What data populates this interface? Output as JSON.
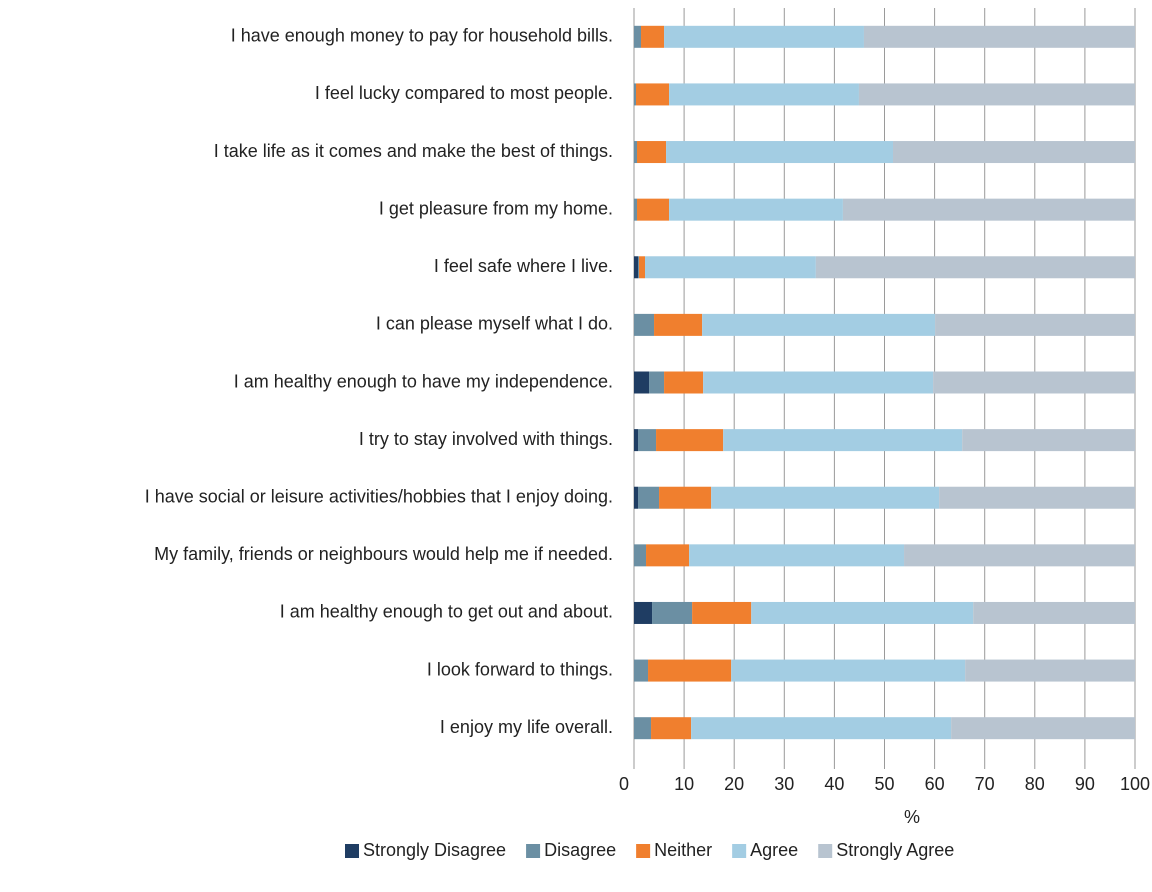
{
  "chart_data": {
    "type": "stacked-barh",
    "xlabel": "%",
    "categories": [
      "I have enough money to pay for household bills.",
      "I feel lucky compared to most people.",
      "I take life as it comes and make the best of things.",
      "I get pleasure from my home.",
      "I feel safe where I live.",
      "I can please myself what I do.",
      "I am healthy enough to have my independence.",
      "I try to stay involved with things.",
      "I have social or leisure activities/hobbies that I enjoy doing.",
      "My family, friends or neighbours would help me if needed.",
      "I am healthy enough to get out and about.",
      "I look forward to things.",
      "I enjoy my life overall."
    ],
    "series": [
      {
        "name": "Strongly Disagree",
        "color": "#1f3d63",
        "values": [
          0,
          0,
          0,
          0,
          0.8,
          0,
          3.0,
          0.8,
          0.8,
          0,
          3.6,
          0,
          0
        ]
      },
      {
        "name": "Disagree",
        "color": "#6b8fa3",
        "values": [
          1.4,
          0.4,
          0.6,
          0.6,
          0.2,
          4.0,
          3.0,
          3.6,
          4.2,
          2.4,
          8.0,
          2.8,
          3.4
        ]
      },
      {
        "name": "Neither",
        "color": "#f07f2e",
        "values": [
          4.6,
          6.6,
          5.8,
          6.4,
          1.2,
          9.6,
          7.8,
          13.4,
          10.4,
          8.6,
          11.8,
          16.6,
          8.0
        ]
      },
      {
        "name": "Agree",
        "color": "#a3cde3",
        "values": [
          39.9,
          37.9,
          45.3,
          34.7,
          34.1,
          46.5,
          45.9,
          47.7,
          45.5,
          42.9,
          44.3,
          46.7,
          51.9
        ]
      },
      {
        "name": "Strongly Agree",
        "color": "#b8c4d0",
        "values": [
          54.1,
          55.1,
          48.3,
          58.3,
          63.7,
          39.9,
          40.3,
          34.5,
          39.1,
          46.1,
          32.3,
          33.9,
          36.7
        ]
      }
    ],
    "xlim": [
      0,
      100
    ],
    "xticks": [
      0,
      10,
      20,
      30,
      40,
      50,
      60,
      70,
      80,
      90,
      100
    ],
    "grid": true,
    "legend": "bottom"
  }
}
